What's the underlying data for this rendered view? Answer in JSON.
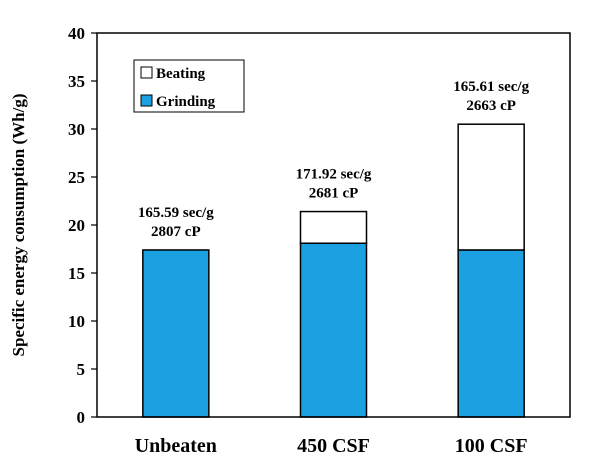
{
  "chart_data": {
    "type": "bar",
    "stacked": true,
    "categories": [
      "Unbeaten",
      "450 CSF",
      "100 CSF"
    ],
    "series": [
      {
        "name": "Grinding",
        "values": [
          17.4,
          18.1,
          17.4
        ],
        "color": "#1BA1E2"
      },
      {
        "name": "Beating",
        "values": [
          0,
          3.3,
          13.1
        ],
        "color": "#FFFFFF"
      }
    ],
    "annotations": [
      {
        "line1": "165.59 sec/g",
        "line2": "2807 cP"
      },
      {
        "line1": "171.92 sec/g",
        "line2": "2681 cP"
      },
      {
        "line1": "165.61 sec/g",
        "line2": "2663 cP"
      }
    ],
    "ylabel": "Specific energy consumption (Wh/g)",
    "ylim": [
      0,
      40
    ],
    "yticks": [
      0,
      5,
      10,
      15,
      20,
      25,
      30,
      35,
      40
    ],
    "grid": false,
    "legend_position": "top-left"
  }
}
